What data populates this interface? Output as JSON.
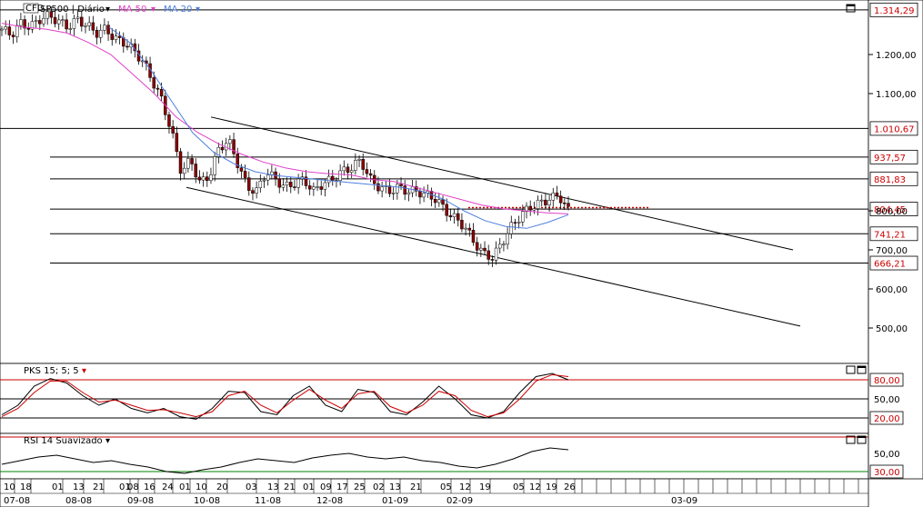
{
  "header": {
    "cfd_badge": "CFD",
    "symbol": "SP500 | Diário",
    "ma50_label": "MA 50",
    "ma20_label": "MA 20",
    "dropdown_arrow": "▾"
  },
  "pks_panel": {
    "label": "PKS 15; 5; 5",
    "levels": [
      "80,00",
      "50,00",
      "20,00"
    ]
  },
  "rsi_panel": {
    "label": "RSI 14 Suavizado",
    "levels": [
      "50,00",
      "30,00"
    ]
  },
  "price_axis": {
    "tick_labels": [
      "1.200,00",
      "1.100,00",
      "800,00",
      "700,00",
      "600,00",
      "500,00"
    ],
    "level_tags": [
      "1.314,29",
      "1.010,67",
      "937,57",
      "881,83",
      "804,45",
      "741,21",
      "666,21"
    ]
  },
  "time_axis": {
    "day_labels": [
      "10",
      "18",
      "01",
      "13",
      "21",
      "01",
      "08",
      "16",
      "24",
      "01",
      "10",
      "20",
      "03",
      "13",
      "21",
      "01",
      "09",
      "17",
      "25",
      "02",
      "13",
      "21",
      "05",
      "12",
      "19",
      "05",
      "12",
      "19",
      "26"
    ],
    "month_labels": [
      "07-08",
      "08-08",
      "09-08",
      "10-08",
      "11-08",
      "12-08",
      "01-09",
      "02-09",
      "03-09"
    ]
  },
  "colors": {
    "ma50": "#e040c8",
    "ma20": "#4f7fe0",
    "bull": "#ffffff",
    "bear": "#8b0000",
    "level_tag_text": "#cc0000",
    "stoch_k": "#000000",
    "stoch_d": "#cc0000",
    "rsi_30_line": "#008000"
  },
  "chart_data": {
    "type": "line",
    "title": "SP500 | Diário",
    "ylim": [
      430,
      1330
    ],
    "y_scale": "linear",
    "grid": false,
    "horizontal_levels": [
      1314.29,
      1010.67,
      937.57,
      881.83,
      804.45,
      741.21,
      666.21
    ],
    "price_path": [
      1265,
      1250,
      1280,
      1270,
      1290,
      1300,
      1285,
      1270,
      1290,
      1275,
      1255,
      1265,
      1240,
      1230,
      1210,
      1180,
      1130,
      1080,
      1000,
      900,
      930,
      870,
      890,
      960,
      980,
      920,
      860,
      850,
      900,
      880,
      860,
      870,
      880,
      850,
      870,
      880,
      900,
      910,
      930,
      880,
      860,
      850,
      860,
      850,
      850,
      840,
      830,
      800,
      780,
      760,
      720,
      690,
      680,
      720,
      760,
      790,
      810,
      820,
      830,
      840,
      800
    ],
    "ma50_path": [
      1280,
      1270,
      1265,
      1255,
      1230,
      1200,
      1150,
      1100,
      1040,
      1000,
      970,
      945,
      925,
      910,
      900,
      895,
      892,
      880,
      875,
      860,
      845,
      830,
      815,
      805,
      800,
      795,
      792
    ],
    "ma20_path": [
      1270,
      1230,
      1160,
      1080,
      1000,
      950,
      920,
      900,
      890,
      885,
      880,
      875,
      870,
      865,
      860,
      850,
      830,
      800,
      775,
      760,
      755,
      770,
      790
    ],
    "upper_channel_line": {
      "from_value": 1040,
      "to_value": 700
    },
    "lower_channel_line": {
      "from_value": 860,
      "to_value": 505
    },
    "pks_series": {
      "k": [
        25,
        40,
        70,
        82,
        75,
        55,
        40,
        50,
        35,
        28,
        35,
        22,
        18,
        35,
        62,
        60,
        30,
        25,
        55,
        70,
        40,
        30,
        65,
        60,
        30,
        25,
        45,
        70,
        50,
        25,
        20,
        30,
        60,
        85,
        90,
        80
      ],
      "d": [
        22,
        35,
        60,
        78,
        78,
        60,
        45,
        48,
        40,
        32,
        33,
        28,
        22,
        30,
        55,
        62,
        40,
        28,
        48,
        65,
        48,
        35,
        58,
        62,
        38,
        28,
        40,
        62,
        55,
        32,
        22,
        28,
        50,
        78,
        88,
        85
      ]
    },
    "rsi_series": [
      38,
      42,
      46,
      48,
      44,
      40,
      42,
      38,
      35,
      30,
      28,
      32,
      35,
      40,
      44,
      42,
      40,
      45,
      48,
      50,
      46,
      44,
      46,
      42,
      40,
      36,
      34,
      38,
      44,
      52,
      56,
      54
    ]
  }
}
